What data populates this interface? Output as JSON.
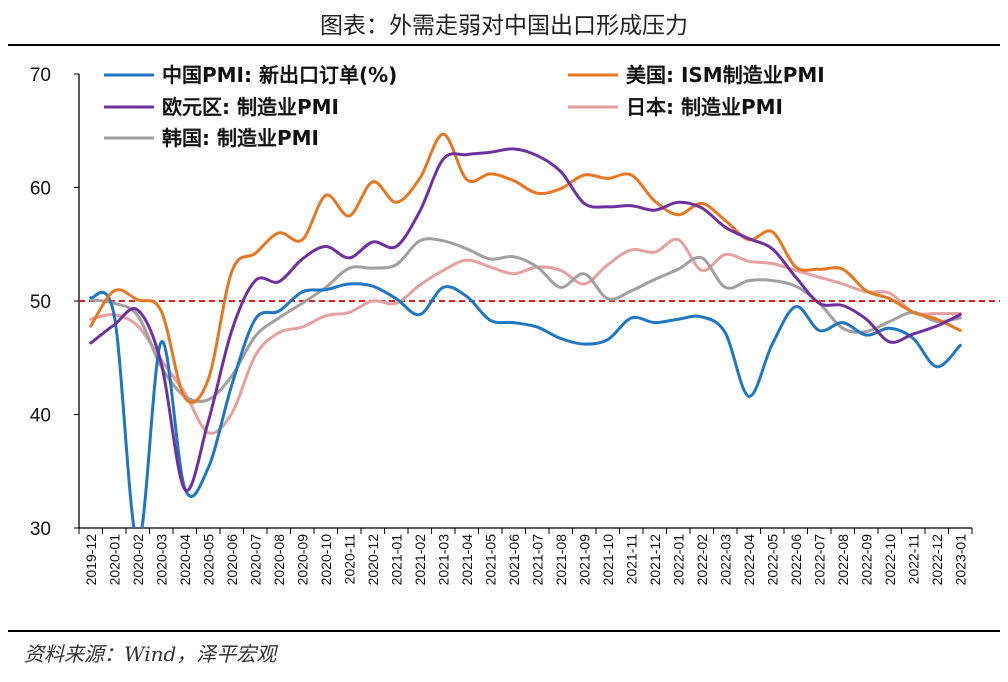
{
  "title": "图表：外需走弱对中国出口形成压力",
  "source": "资料来源：Wind，泽平宏观",
  "chart_data": {
    "type": "line",
    "title": "图表：外需走弱对中国出口形成压力",
    "xlabel": "",
    "ylabel": "",
    "ylim": [
      30,
      70
    ],
    "yticks": [
      30,
      40,
      50,
      60,
      70
    ],
    "grid": false,
    "legend_position": "top-left",
    "reference_line": {
      "y": 50,
      "color": "#e02020",
      "style": "dashed"
    },
    "x": [
      "2019-12",
      "2020-01",
      "2020-02",
      "2020-03",
      "2020-04",
      "2020-05",
      "2020-06",
      "2020-07",
      "2020-08",
      "2020-09",
      "2020-10",
      "2020-11",
      "2020-12",
      "2021-01",
      "2021-02",
      "2021-03",
      "2021-04",
      "2021-05",
      "2021-06",
      "2021-07",
      "2021-08",
      "2021-09",
      "2021-10",
      "2021-11",
      "2021-12",
      "2022-01",
      "2022-02",
      "2022-03",
      "2022-04",
      "2022-05",
      "2022-06",
      "2022-07",
      "2022-08",
      "2022-09",
      "2022-10",
      "2022-11",
      "2022-12",
      "2023-01"
    ],
    "series": [
      {
        "name": "中国PMI: 新出口订单(%)",
        "color": "#1f77c4",
        "values": [
          50.3,
          48.7,
          28.7,
          46.4,
          33.5,
          35.3,
          42.6,
          48.4,
          49.1,
          50.8,
          51.0,
          51.5,
          51.3,
          50.2,
          48.8,
          51.2,
          50.4,
          48.3,
          48.1,
          47.7,
          46.7,
          46.2,
          46.6,
          48.5,
          48.1,
          48.4,
          48.6,
          47.2,
          41.6,
          46.2,
          49.5,
          47.4,
          48.1,
          47.0,
          47.6,
          46.7,
          44.2,
          46.1
        ]
      },
      {
        "name": "美国: ISM制造业PMI",
        "color": "#e87722",
        "values": [
          47.8,
          50.9,
          50.1,
          49.1,
          41.5,
          43.1,
          52.6,
          54.2,
          56.0,
          55.4,
          59.3,
          57.5,
          60.5,
          58.7,
          60.8,
          64.7,
          60.7,
          61.2,
          60.6,
          59.5,
          59.9,
          61.1,
          60.8,
          61.1,
          58.8,
          57.6,
          58.6,
          57.1,
          55.4,
          56.1,
          53.0,
          52.8,
          52.8,
          50.9,
          50.2,
          49.0,
          48.4,
          47.4
        ]
      },
      {
        "name": "欧元区: 制造业PMI",
        "color": "#7030a0",
        "values": [
          46.3,
          47.9,
          49.2,
          44.5,
          33.4,
          39.4,
          47.4,
          51.8,
          51.7,
          53.7,
          54.8,
          53.8,
          55.2,
          54.8,
          57.9,
          62.5,
          62.9,
          63.1,
          63.4,
          62.8,
          61.4,
          58.6,
          58.3,
          58.4,
          58.0,
          58.7,
          58.2,
          56.5,
          55.5,
          54.6,
          52.1,
          49.8,
          49.6,
          48.4,
          46.4,
          47.1,
          47.8,
          48.8
        ]
      },
      {
        "name": "日本: 制造业PMI",
        "color": "#e6a0a0",
        "values": [
          48.4,
          48.8,
          47.8,
          44.8,
          41.9,
          38.4,
          40.1,
          45.2,
          47.2,
          47.7,
          48.7,
          49.0,
          50.0,
          49.8,
          51.4,
          52.7,
          53.6,
          53.0,
          52.4,
          53.0,
          52.7,
          51.5,
          53.2,
          54.5,
          54.3,
          55.4,
          52.7,
          54.1,
          53.5,
          53.3,
          52.7,
          52.1,
          51.5,
          50.8,
          50.7,
          49.0,
          48.9,
          48.9
        ]
      },
      {
        "name": "韩国: 制造业PMI",
        "color": "#a0a0a0",
        "values": [
          50.1,
          49.8,
          48.7,
          44.2,
          41.6,
          41.3,
          43.4,
          46.9,
          48.5,
          49.8,
          51.2,
          52.9,
          52.9,
          53.2,
          55.3,
          55.3,
          54.6,
          53.7,
          53.9,
          53.0,
          51.2,
          52.4,
          50.2,
          50.9,
          51.9,
          52.8,
          53.8,
          51.2,
          51.8,
          51.8,
          51.3,
          49.8,
          47.6,
          47.3,
          48.2,
          49.0,
          48.2,
          48.5
        ]
      }
    ]
  }
}
